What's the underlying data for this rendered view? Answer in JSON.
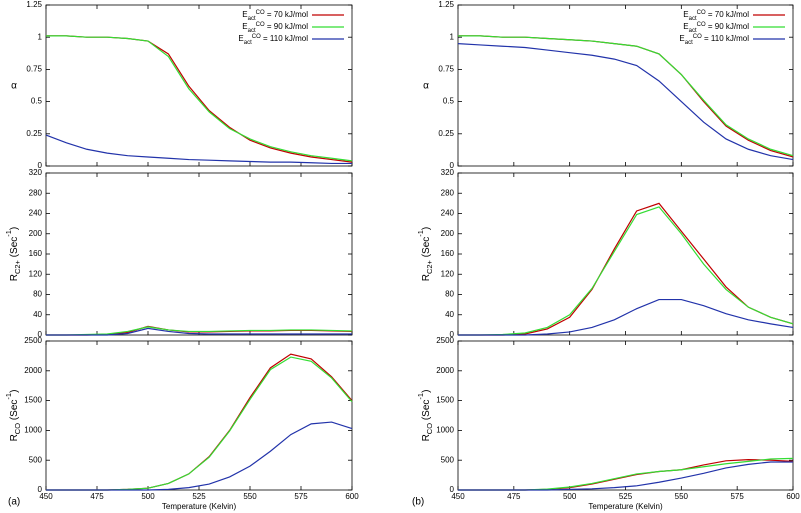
{
  "panel_labels": [
    "(a)",
    "(b)"
  ],
  "chart_data": [
    {
      "type": "line",
      "ylabel": [
        {
          "text": "α"
        }
      ],
      "legend": "upper right",
      "show_xtick_labels": false,
      "x": [
        450,
        460,
        470,
        480,
        490,
        500,
        510,
        520,
        530,
        540,
        550,
        560,
        570,
        580,
        590,
        600
      ],
      "xlim": [
        450,
        600
      ],
      "xticks": [
        450,
        475,
        500,
        525,
        550,
        575,
        600
      ],
      "ylim": [
        0,
        1.25
      ],
      "yticks": [
        0,
        0.25,
        0.5,
        0.75,
        1,
        1.25
      ],
      "series": [
        {
          "name": [
            {
              "text": "E"
            },
            {
              "text": "act",
              "shift": "sub"
            },
            {
              "text": "CO",
              "shift": "super"
            },
            {
              "text": " = 70 kJ/mol"
            }
          ],
          "color": "#c00000",
          "values": [
            1.01,
            1.01,
            1.0,
            1.0,
            0.99,
            0.97,
            0.87,
            0.62,
            0.43,
            0.3,
            0.2,
            0.14,
            0.1,
            0.07,
            0.05,
            0.03
          ]
        },
        {
          "name": [
            {
              "text": "E"
            },
            {
              "text": "act",
              "shift": "sub"
            },
            {
              "text": "CO",
              "shift": "super"
            },
            {
              "text": " = 90 kJ/mol"
            }
          ],
          "color": "#33dd33",
          "values": [
            1.01,
            1.01,
            1.0,
            1.0,
            0.99,
            0.97,
            0.85,
            0.6,
            0.42,
            0.29,
            0.21,
            0.15,
            0.11,
            0.08,
            0.06,
            0.04
          ]
        },
        {
          "name": [
            {
              "text": "E"
            },
            {
              "text": "act",
              "shift": "sub"
            },
            {
              "text": "CO",
              "shift": "super"
            },
            {
              "text": " = 110 kJ/mol"
            }
          ],
          "color": "#2233aa",
          "values": [
            0.24,
            0.18,
            0.13,
            0.1,
            0.08,
            0.07,
            0.06,
            0.05,
            0.045,
            0.04,
            0.035,
            0.03,
            0.03,
            0.025,
            0.02,
            0.02
          ]
        }
      ]
    },
    {
      "type": "line",
      "ylabel": [
        {
          "text": "R"
        },
        {
          "text": "C2+",
          "shift": "sub"
        },
        {
          "text": " (Sec"
        },
        {
          "text": "-1",
          "shift": "super"
        },
        {
          "text": ")"
        }
      ],
      "show_xtick_labels": false,
      "x": [
        450,
        460,
        470,
        480,
        490,
        500,
        510,
        520,
        530,
        540,
        550,
        560,
        570,
        580,
        590,
        600
      ],
      "xlim": [
        450,
        600
      ],
      "xticks": [
        450,
        475,
        500,
        525,
        550,
        575,
        600
      ],
      "ylim": [
        0,
        320
      ],
      "yticks": [
        0,
        40,
        80,
        120,
        160,
        200,
        240,
        280,
        320
      ],
      "series": [
        {
          "color": "#c00000",
          "values": [
            0,
            0,
            0,
            1,
            5,
            17,
            10,
            6,
            6,
            7,
            8,
            8,
            9,
            9,
            8,
            7
          ]
        },
        {
          "color": "#33dd33",
          "values": [
            0,
            0,
            1,
            2,
            7,
            16,
            10,
            7,
            7,
            8,
            9,
            9,
            10,
            10,
            9,
            8
          ]
        },
        {
          "color": "#2233aa",
          "values": [
            0,
            0,
            0,
            0,
            3,
            13,
            7,
            3,
            2,
            2,
            2,
            2,
            2,
            2,
            2,
            2
          ]
        }
      ]
    },
    {
      "type": "line",
      "ylabel": [
        {
          "text": "R"
        },
        {
          "text": "CO",
          "shift": "sub"
        },
        {
          "text": " (Sec"
        },
        {
          "text": "-1",
          "shift": "super"
        },
        {
          "text": ")"
        }
      ],
      "show_xtick_labels": true,
      "xlabel": "Temperature (Kelvin)",
      "x": [
        450,
        460,
        470,
        480,
        490,
        500,
        510,
        520,
        530,
        540,
        550,
        560,
        570,
        580,
        590,
        600
      ],
      "xlim": [
        450,
        600
      ],
      "xticks": [
        450,
        475,
        500,
        525,
        550,
        575,
        600
      ],
      "ylim": [
        0,
        2500
      ],
      "yticks": [
        0,
        500,
        1000,
        1500,
        2000,
        2500
      ],
      "series": [
        {
          "color": "#c00000",
          "values": [
            0,
            0,
            0,
            0,
            10,
            30,
            110,
            270,
            560,
            1000,
            1550,
            2050,
            2280,
            2200,
            1900,
            1500
          ]
        },
        {
          "color": "#33dd33",
          "values": [
            0,
            0,
            0,
            0,
            10,
            30,
            110,
            270,
            550,
            990,
            1520,
            2020,
            2230,
            2160,
            1880,
            1480
          ]
        },
        {
          "color": "#2233aa",
          "values": [
            0,
            0,
            0,
            0,
            0,
            0,
            10,
            40,
            100,
            220,
            400,
            650,
            930,
            1110,
            1140,
            1030
          ]
        }
      ]
    },
    {
      "type": "line",
      "ylabel": [
        {
          "text": "α"
        }
      ],
      "legend": "upper right",
      "show_xtick_labels": false,
      "x": [
        450,
        460,
        470,
        480,
        490,
        500,
        510,
        520,
        530,
        540,
        550,
        560,
        570,
        580,
        590,
        600
      ],
      "xlim": [
        450,
        600
      ],
      "xticks": [
        450,
        475,
        500,
        525,
        550,
        575,
        600
      ],
      "ylim": [
        0,
        1.25
      ],
      "yticks": [
        0,
        0.25,
        0.5,
        0.75,
        1,
        1.25
      ],
      "series": [
        {
          "name": [
            {
              "text": "E"
            },
            {
              "text": "act",
              "shift": "sub"
            },
            {
              "text": "CO",
              "shift": "super"
            },
            {
              "text": " = 70 kJ/mol"
            }
          ],
          "color": "#c00000",
          "values": [
            1.01,
            1.01,
            1.0,
            1.0,
            0.99,
            0.98,
            0.97,
            0.95,
            0.93,
            0.87,
            0.71,
            0.5,
            0.31,
            0.2,
            0.12,
            0.07
          ]
        },
        {
          "name": [
            {
              "text": "E"
            },
            {
              "text": "act",
              "shift": "sub"
            },
            {
              "text": "CO",
              "shift": "super"
            },
            {
              "text": " = 90 kJ/mol"
            }
          ],
          "color": "#33dd33",
          "values": [
            1.01,
            1.01,
            1.0,
            1.0,
            0.99,
            0.98,
            0.97,
            0.95,
            0.93,
            0.87,
            0.71,
            0.51,
            0.32,
            0.21,
            0.13,
            0.08
          ]
        },
        {
          "name": [
            {
              "text": "E"
            },
            {
              "text": "act",
              "shift": "sub"
            },
            {
              "text": "CO",
              "shift": "super"
            },
            {
              "text": " = 110 kJ/mol"
            }
          ],
          "color": "#2233aa",
          "values": [
            0.95,
            0.94,
            0.93,
            0.92,
            0.9,
            0.88,
            0.86,
            0.83,
            0.78,
            0.66,
            0.5,
            0.34,
            0.21,
            0.13,
            0.08,
            0.05
          ]
        }
      ]
    },
    {
      "type": "line",
      "ylabel": [
        {
          "text": "R"
        },
        {
          "text": "C2+",
          "shift": "sub"
        },
        {
          "text": " (Sec"
        },
        {
          "text": "-1",
          "shift": "super"
        },
        {
          "text": ")"
        }
      ],
      "show_xtick_labels": false,
      "x": [
        450,
        460,
        470,
        480,
        490,
        500,
        510,
        520,
        530,
        540,
        550,
        560,
        570,
        580,
        590,
        600
      ],
      "xlim": [
        450,
        600
      ],
      "xticks": [
        450,
        475,
        500,
        525,
        550,
        575,
        600
      ],
      "ylim": [
        0,
        320
      ],
      "yticks": [
        0,
        40,
        80,
        120,
        160,
        200,
        240,
        280,
        320
      ],
      "series": [
        {
          "color": "#c00000",
          "values": [
            0,
            0,
            0,
            2,
            12,
            35,
            90,
            170,
            245,
            260,
            205,
            150,
            95,
            55,
            35,
            22
          ]
        },
        {
          "color": "#33dd33",
          "values": [
            0,
            0,
            1,
            4,
            15,
            40,
            92,
            165,
            238,
            253,
            200,
            140,
            90,
            55,
            35,
            22
          ]
        },
        {
          "color": "#2233aa",
          "values": [
            0,
            0,
            0,
            0,
            2,
            6,
            15,
            30,
            52,
            70,
            70,
            58,
            42,
            30,
            22,
            15
          ]
        }
      ]
    },
    {
      "type": "line",
      "ylabel": [
        {
          "text": "R"
        },
        {
          "text": "CO",
          "shift": "sub"
        },
        {
          "text": " (Sec"
        },
        {
          "text": "-1",
          "shift": "super"
        },
        {
          "text": ")"
        }
      ],
      "show_xtick_labels": true,
      "xlabel": "Temperature (Kelvin)",
      "x": [
        450,
        460,
        470,
        480,
        490,
        500,
        510,
        520,
        530,
        540,
        550,
        560,
        570,
        580,
        590,
        600
      ],
      "xlim": [
        450,
        600
      ],
      "xticks": [
        450,
        475,
        500,
        525,
        550,
        575,
        600
      ],
      "ylim": [
        0,
        2500
      ],
      "yticks": [
        0,
        500,
        1000,
        1500,
        2000,
        2500
      ],
      "series": [
        {
          "color": "#c00000",
          "values": [
            0,
            0,
            0,
            0,
            10,
            40,
            100,
            180,
            260,
            310,
            340,
            420,
            490,
            510,
            500,
            480
          ]
        },
        {
          "color": "#33dd33",
          "values": [
            0,
            0,
            0,
            0,
            15,
            50,
            110,
            190,
            270,
            310,
            340,
            390,
            440,
            480,
            520,
            530
          ]
        },
        {
          "color": "#2233aa",
          "values": [
            0,
            0,
            0,
            0,
            0,
            10,
            20,
            40,
            70,
            130,
            200,
            280,
            370,
            430,
            470,
            470
          ]
        }
      ]
    }
  ]
}
